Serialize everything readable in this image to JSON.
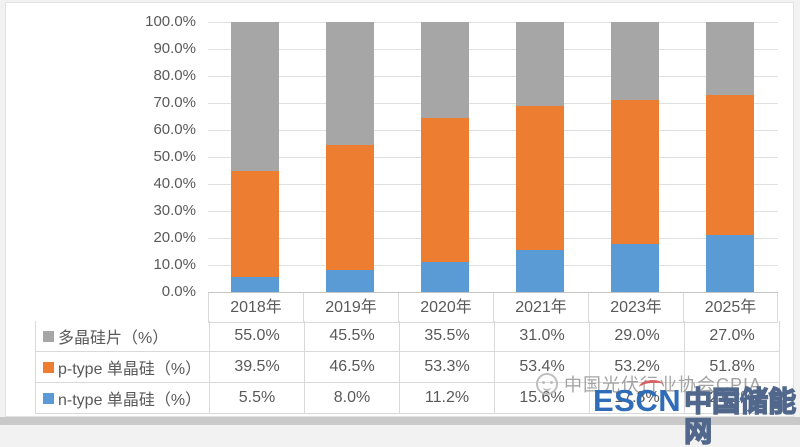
{
  "chart_data": {
    "type": "bar",
    "stacked": true,
    "percent_stacked": true,
    "title": "",
    "xlabel": "",
    "ylabel": "",
    "ylim": [
      0,
      100
    ],
    "grid": true,
    "legend_position": "data-table-left",
    "categories": [
      "2018年",
      "2019年",
      "2020年",
      "2021年",
      "2023年",
      "2025年"
    ],
    "y_ticks": [
      "100.0%",
      "90.0%",
      "80.0%",
      "70.0%",
      "60.0%",
      "50.0%",
      "40.0%",
      "30.0%",
      "20.0%",
      "10.0%",
      "0.0%"
    ],
    "series": [
      {
        "name": "多晶硅片（%）",
        "color": "#A6A6A6",
        "values": [
          55.0,
          45.5,
          35.5,
          31.0,
          29.0,
          27.0
        ],
        "display": [
          "55.0%",
          "45.5%",
          "35.5%",
          "31.0%",
          "29.0%",
          "27.0%"
        ]
      },
      {
        "name": "p-type 单晶硅（%）",
        "color": "#ED7D31",
        "values": [
          39.5,
          46.5,
          53.3,
          53.4,
          53.2,
          51.8
        ],
        "display": [
          "39.5%",
          "46.5%",
          "53.3%",
          "53.4%",
          "53.2%",
          "51.8%"
        ]
      },
      {
        "name": "n-type 单晶硅（%）",
        "color": "#5B9BD5",
        "values": [
          5.5,
          8.0,
          11.2,
          15.6,
          17.8,
          21.2
        ],
        "display": [
          "5.5%",
          "8.0%",
          "11.2%",
          "15.6%",
          "17.8%",
          "21.2%"
        ]
      }
    ]
  },
  "watermarks": {
    "cpia": "中国光伏行业协会CPIA",
    "escn_en": "ESCN",
    "escn_cn": "中国储能网"
  }
}
